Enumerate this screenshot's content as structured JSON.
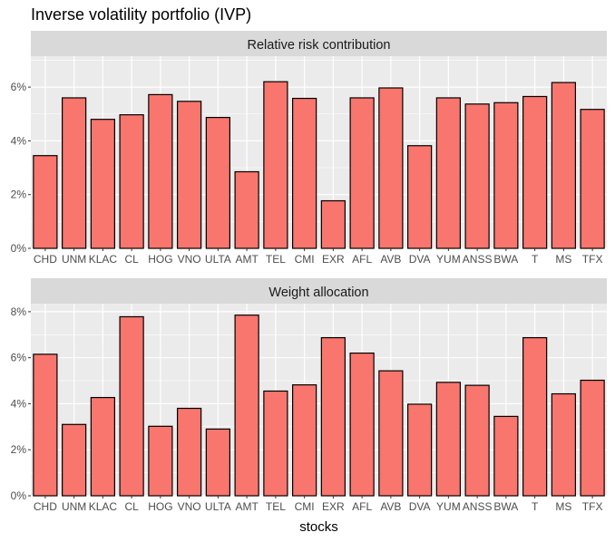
{
  "chart_data": {
    "type": "bar",
    "title": "Inverse volatility portfolio (IVP)",
    "xlabel": "stocks",
    "categories": [
      "CHD",
      "UNM",
      "KLAC",
      "CL",
      "HOG",
      "VNO",
      "ULTA",
      "AMT",
      "TEL",
      "CMI",
      "EXR",
      "AFL",
      "AVB",
      "DVA",
      "YUM",
      "ANSS",
      "BWA",
      "T",
      "MS",
      "TFX"
    ],
    "fill_color": "#F8766D",
    "panel_background": "#EBEBEB",
    "strip_background": "#D9D9D9",
    "grid": true,
    "facets": [
      {
        "strip": "Relative risk contribution",
        "values": [
          3.45,
          5.6,
          4.8,
          4.97,
          5.72,
          5.47,
          4.87,
          2.85,
          6.2,
          5.58,
          1.77,
          5.6,
          5.97,
          3.82,
          5.6,
          5.37,
          5.42,
          5.65,
          6.17,
          5.17
        ],
        "ylim": [
          0,
          7.15
        ],
        "y_ticks": [
          0,
          2,
          4,
          6
        ],
        "y_tick_labels": [
          "0%",
          "2%",
          "4%",
          "6%"
        ]
      },
      {
        "strip": "Weight allocation",
        "values": [
          6.15,
          3.1,
          4.27,
          7.78,
          3.02,
          3.8,
          2.9,
          7.85,
          4.55,
          4.82,
          6.87,
          6.2,
          5.43,
          3.98,
          4.93,
          4.8,
          3.45,
          6.87,
          4.43,
          5.02
        ],
        "ylim": [
          0,
          8.35
        ],
        "y_ticks": [
          0,
          2,
          4,
          6,
          8
        ],
        "y_tick_labels": [
          "0%",
          "2%",
          "4%",
          "6%",
          "8%"
        ]
      }
    ]
  }
}
